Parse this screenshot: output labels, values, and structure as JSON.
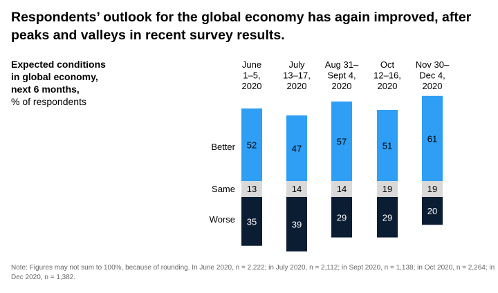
{
  "title": "Respondents’ outlook for the global economy has again improved, after peaks and valleys in recent survey results.",
  "subtitle": {
    "bold_lines": [
      "Expected conditions",
      "in global economy,",
      "next 6 months,"
    ],
    "normal_line": "% of respondents"
  },
  "chart_data": {
    "type": "bar",
    "stacked": true,
    "title": "Expected conditions in global economy, next 6 months, % of respondents",
    "categories": [
      [
        "June",
        "1–5,",
        "2020"
      ],
      [
        "July",
        "13–17,",
        "2020"
      ],
      [
        "Aug 31–",
        "Sept 4,",
        "2020"
      ],
      [
        "Oct",
        "12–16,",
        "2020"
      ],
      [
        "Nov 30–",
        "Dec 4,",
        "2020"
      ]
    ],
    "series": [
      {
        "name": "Better",
        "values": [
          52,
          47,
          57,
          51,
          61
        ],
        "color": "#2f9ff5",
        "label_color": "#000000"
      },
      {
        "name": "Same",
        "values": [
          13,
          14,
          14,
          19,
          19
        ],
        "color": "#d9d9d9",
        "label_color": "#000000"
      },
      {
        "name": "Worse",
        "values": [
          35,
          39,
          29,
          29,
          20
        ],
        "color": "#0b1d33",
        "label_color": "#ffffff"
      }
    ]
  },
  "note": "Note: Figures may not sum to 100%, because of rounding. In June 2020, n = 2,222; in July 2020, n = 2,112; in Sept 2020, n = 1,138; in Oct 2020, n = 2,264; in Dec 2020, n = 1,382."
}
